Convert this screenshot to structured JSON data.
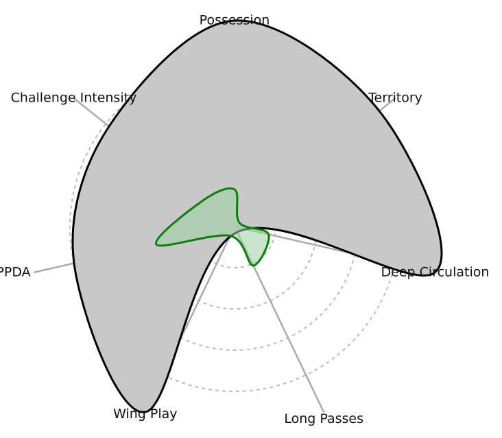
{
  "chart_data": {
    "type": "radar",
    "axes": [
      "Possession",
      "Territory",
      "Deep Circulation",
      "Long Passes",
      "Wing Play",
      "PPDA",
      "Challenge Intensity"
    ],
    "rlim": [
      0,
      1
    ],
    "rticks": [
      0.2,
      0.4,
      0.6,
      0.8
    ],
    "series": [
      {
        "color": "#000000",
        "fill": "#c8c8c8",
        "values": [
          1.0,
          0.9,
          1.0,
          0.03,
          1.0,
          0.8,
          0.78
        ]
      },
      {
        "color": "#0a7d0a",
        "fill": "#9ed29e",
        "values": [
          0.18,
          0.03,
          0.17,
          0.21,
          0.05,
          0.39,
          0.2
        ]
      }
    ]
  }
}
